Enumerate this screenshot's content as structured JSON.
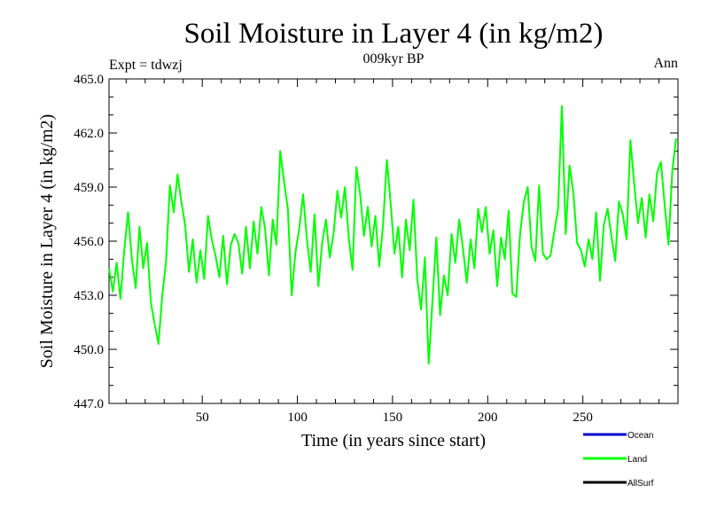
{
  "chart_data": {
    "type": "line",
    "title": "Soil Moisture in Layer 4 (in kg/m2)",
    "subtitle": "009kyr BP",
    "left_label": "Expt = tdwzj",
    "right_label": "Ann",
    "xlabel": "Time (in years since start)",
    "ylabel": "Soil Moisture in Layer 4 (in kg/m2)",
    "xlim": [
      1,
      300
    ],
    "ylim": [
      447.0,
      465.0
    ],
    "x_ticks": [
      50,
      100,
      150,
      200,
      250
    ],
    "x_tick_labels": [
      "50",
      "100",
      "150",
      "200",
      "250"
    ],
    "y_ticks": [
      447.0,
      450.0,
      453.0,
      456.0,
      459.0,
      462.0,
      465.0
    ],
    "y_tick_labels": [
      "447.0",
      "450.0",
      "453.0",
      "456.0",
      "459.0",
      "462.0",
      "465.0"
    ],
    "grid": false,
    "legend": {
      "placement": "bottom-right",
      "entries": [
        {
          "name": "Ocean",
          "color": "#0000cc"
        },
        {
          "name": "Land",
          "color": "#00ff00"
        },
        {
          "name": "AllSurf",
          "color": "#000000"
        }
      ]
    },
    "series": [
      {
        "name": "Land",
        "color": "#00ff00",
        "x": [
          1,
          3,
          5,
          7,
          9,
          11,
          13,
          15,
          17,
          19,
          21,
          23,
          25,
          27,
          29,
          31,
          33,
          35,
          37,
          39,
          41,
          43,
          45,
          47,
          49,
          51,
          53,
          55,
          57,
          59,
          61,
          63,
          65,
          67,
          69,
          71,
          73,
          75,
          77,
          79,
          81,
          83,
          85,
          87,
          89,
          91,
          93,
          95,
          97,
          99,
          101,
          103,
          105,
          107,
          109,
          111,
          113,
          115,
          117,
          119,
          121,
          123,
          125,
          127,
          129,
          131,
          133,
          135,
          137,
          139,
          141,
          143,
          145,
          147,
          149,
          151,
          153,
          155,
          157,
          159,
          161,
          163,
          165,
          167,
          169,
          171,
          173,
          175,
          177,
          179,
          181,
          183,
          185,
          187,
          189,
          191,
          193,
          195,
          197,
          199,
          201,
          203,
          205,
          207,
          209,
          211,
          213,
          215,
          217,
          219,
          221,
          223,
          225,
          227,
          229,
          231,
          233,
          235,
          237,
          239,
          241,
          243,
          245,
          247,
          249,
          251,
          253,
          255,
          257,
          259,
          261,
          263,
          265,
          267,
          269,
          271,
          273,
          275,
          277,
          279,
          281,
          283,
          285,
          287,
          289,
          291,
          293,
          295,
          297,
          299
        ],
        "values": [
          454.5,
          453.2,
          454.8,
          452.8,
          455.5,
          457.6,
          455.0,
          453.4,
          456.8,
          454.5,
          455.9,
          452.6,
          451.4,
          450.3,
          453.0,
          454.9,
          459.1,
          457.6,
          459.7,
          458.2,
          456.9,
          454.3,
          456.1,
          453.7,
          455.5,
          453.9,
          457.4,
          456.1,
          455.2,
          454.0,
          456.3,
          453.6,
          455.8,
          456.4,
          455.9,
          454.2,
          456.8,
          454.5,
          457.1,
          455.3,
          457.9,
          456.7,
          454.1,
          457.2,
          455.8,
          461.0,
          459.3,
          457.8,
          453.0,
          455.4,
          456.7,
          458.6,
          456.1,
          454.3,
          457.5,
          453.5,
          455.9,
          457.2,
          455.1,
          456.4,
          458.8,
          457.3,
          459.0,
          456.2,
          454.4,
          460.1,
          458.6,
          456.3,
          457.9,
          455.7,
          457.4,
          454.6,
          456.9,
          460.5,
          458.1,
          455.3,
          456.8,
          454.0,
          457.2,
          455.5,
          458.3,
          453.9,
          452.2,
          455.1,
          449.2,
          452.7,
          456.2,
          451.9,
          454.1,
          453.0,
          456.4,
          454.8,
          457.2,
          455.6,
          453.7,
          456.1,
          454.5,
          457.8,
          456.5,
          457.9,
          455.3,
          456.6,
          453.5,
          456.2,
          455.0,
          457.7,
          453.1,
          452.9,
          456.4,
          458.2,
          459.0,
          455.7,
          454.9,
          459.1,
          455.3,
          455.0,
          455.2,
          456.5,
          457.8,
          463.5,
          456.4,
          460.2,
          458.7,
          455.9,
          455.5,
          454.6,
          456.1,
          455.0,
          457.6,
          453.8,
          456.9,
          457.8,
          456.3,
          454.9,
          458.2,
          457.5,
          456.1,
          461.6,
          459.2,
          457.0,
          458.4,
          456.2,
          458.6,
          457.1,
          459.8,
          460.4,
          458.0,
          455.8,
          459.9,
          461.7
        ]
      }
    ]
  }
}
